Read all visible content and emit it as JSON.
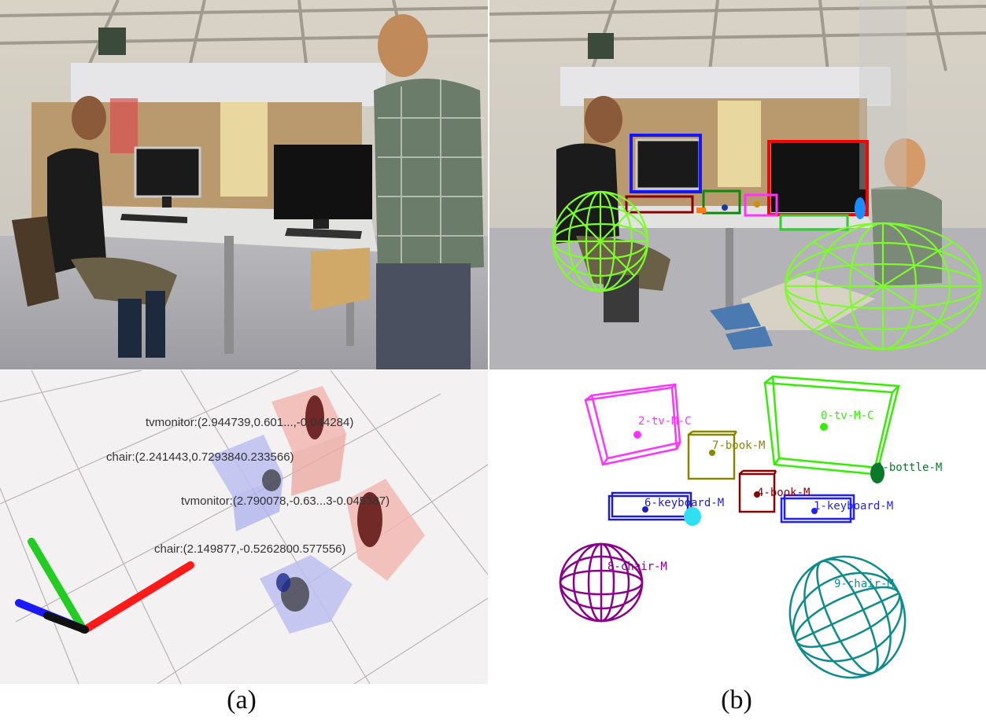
{
  "captions": {
    "a": "(a)",
    "b": "(b)"
  },
  "panel_a_labels": {
    "tv1": "tvmonitor:(2.944739,0.601...,-0.044284)",
    "chair1": "chair:(2.241443,0.7293840.233566)",
    "tv2": "tvmonitor:(2.790078,-0.63...3-0.045387)",
    "chair2": "chair:(2.149877,-0.5262800.577556)"
  },
  "panel_b_labels": {
    "tv0": "0-tv-M-C",
    "tv2": "2-tv-M-C",
    "book7": "7-book-M",
    "bottle": "3-bottle-M",
    "book4": "4-book-M",
    "keyboard6": "6-keyboard-M",
    "keyboard1": "1-keyboard-M",
    "chair8": "8-chair-M",
    "chair9": "9-chair-M"
  },
  "colors": {
    "wireframe_green": "#7CFC2A",
    "tv0": "#33ee00",
    "tv2": "#ff33ff",
    "book7": "#888800",
    "book4": "#8b0000",
    "keyboard": "#1f1fc0",
    "bottle": "#0a7a2a",
    "chair8": "#8b008b",
    "chair9": "#0e8b8b",
    "axis_x": "#ff1a1a",
    "axis_y": "#22cc22",
    "axis_z": "#1a1aff"
  }
}
